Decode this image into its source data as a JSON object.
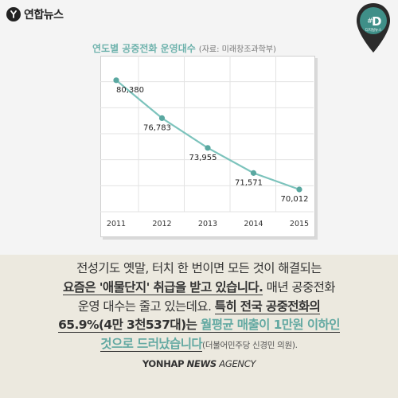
{
  "brand": {
    "logo_text": "연합뉴스",
    "pin_label": "D",
    "pin_sub": "디지털뉴스"
  },
  "chart_data": {
    "type": "line",
    "title": "연도별 공중전화 운영대수",
    "source": "(자료: 미래창조과학부)",
    "categories": [
      "2011",
      "2012",
      "2013",
      "2014",
      "2015"
    ],
    "series": [
      {
        "values": [
          80380,
          76783,
          73955,
          71571,
          70012
        ]
      }
    ],
    "value_labels": [
      "80,380",
      "76,783",
      "73,955",
      "71,571",
      "70,012"
    ],
    "grid": true,
    "line_color": "#7cc3bc"
  },
  "text": {
    "line1": "전성기도 옛말, 터치 한 번이면 모든 것이 해결되는",
    "line2_ul": "요즘은 '애물단지' 취급을 받고 있습니다.",
    "line2_rest": " 매년 공중전화",
    "line3_a": "운영 대수는 줄고 있는데요. ",
    "line3_b": "특히 전국 공중전화의",
    "line4_a": "65.9%(4만 3천537대)는 ",
    "line4_b": "월평균 매출이 1만원 이하인",
    "line5_a": "것으로 드러났습니다",
    "line5_b": "(더불어민주당 신경민 의원)."
  },
  "footer": {
    "part1": "YONHAP",
    "part2": "NEWS",
    "part3": "AGENCY"
  }
}
